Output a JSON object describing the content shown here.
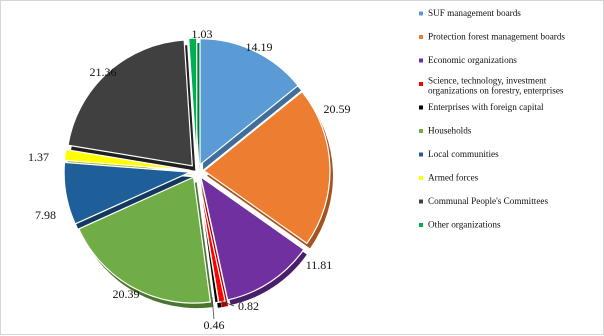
{
  "chart_data": {
    "type": "pie",
    "exploded": true,
    "legend_position": "right",
    "title": "",
    "slices": [
      {
        "label": "SUF management boards",
        "value": 14.19,
        "color": "#5b9bd5",
        "shade": "#3e6e99",
        "show_label": "14.19"
      },
      {
        "label": "Protection forest management boards",
        "value": 20.59,
        "color": "#ed7d31",
        "shade": "#a55420",
        "show_label": "20.59"
      },
      {
        "label": "Economic organizations",
        "value": 11.81,
        "color": "#7030a0",
        "shade": "#4a1f6a",
        "show_label": "11.81"
      },
      {
        "label": "Science, technology, investment organizations on forestry, enterprises",
        "value": 0.82,
        "color": "#ff0000",
        "shade": "#aa0000",
        "show_label": "0.82"
      },
      {
        "label": "Enterprises with foreign capital",
        "value": 0.46,
        "color": "#000000",
        "shade": "#000000",
        "show_label": "0.46"
      },
      {
        "label": "Households",
        "value": 20.39,
        "color": "#70ad47",
        "shade": "#4a7430",
        "show_label": "20.39"
      },
      {
        "label": "Local communities",
        "value": 7.98,
        "color": "#1f5f99",
        "shade": "#133a5e",
        "show_label": "7.98"
      },
      {
        "label": "Armed forces",
        "value": 1.37,
        "color": "#ffff00",
        "shade": "#b3b300",
        "show_label": "1.37"
      },
      {
        "label": "Communal People's Committees",
        "value": 21.36,
        "color": "#404040",
        "shade": "#202020",
        "show_label": "21.36"
      },
      {
        "label": "Other organizations",
        "value": 1.03,
        "color": "#00b050",
        "shade": "#007a37",
        "show_label": "1.03"
      }
    ]
  }
}
